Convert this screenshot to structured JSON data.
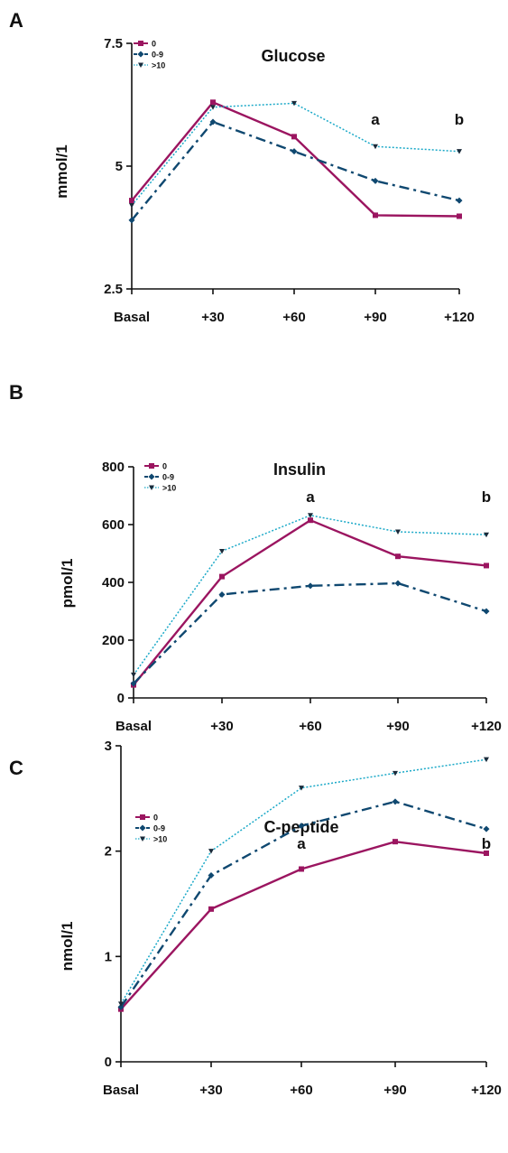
{
  "colors": {
    "0": "#9b1560",
    "0-9": "#0f4870",
    ">10": "#1ba9c8",
    "axis": "#111111"
  },
  "chart_data": [
    {
      "type": "line",
      "panel": "A",
      "title": "Glucose",
      "xlabel": "",
      "ylabel": "mmol/1",
      "categories": [
        "Basal",
        "+30",
        "+60",
        "+90",
        "+120"
      ],
      "yticks": [
        "2.5",
        "5",
        "7.5"
      ],
      "ylim": [
        2.5,
        7.5
      ],
      "legend_position": "top-left",
      "series": [
        {
          "name": "0",
          "values": [
            4.3,
            6.3,
            5.6,
            4.0,
            3.98
          ]
        },
        {
          "name": "0-9",
          "values": [
            3.9,
            5.9,
            5.3,
            4.7,
            4.3
          ]
        },
        {
          "name": ">10",
          "values": [
            4.2,
            6.2,
            6.28,
            5.4,
            5.3
          ]
        }
      ],
      "annotations": [
        {
          "text": "a",
          "x": "+90"
        },
        {
          "text": "b",
          "x": "+120"
        }
      ]
    },
    {
      "type": "line",
      "panel": "B",
      "title": "Insulin",
      "xlabel": "",
      "ylabel": "pmol/1",
      "categories": [
        "Basal",
        "+30",
        "+60",
        "+90",
        "+120"
      ],
      "yticks": [
        "0",
        "200",
        "400",
        "600",
        "800"
      ],
      "ylim": [
        0,
        800
      ],
      "legend_position": "top-left",
      "series": [
        {
          "name": "0",
          "values": [
            45,
            420,
            615,
            490,
            458
          ]
        },
        {
          "name": "0-9",
          "values": [
            50,
            358,
            388,
            397,
            300
          ]
        },
        {
          "name": ">10",
          "values": [
            80,
            508,
            632,
            575,
            565
          ]
        }
      ],
      "annotations": [
        {
          "text": "a",
          "x": "+60"
        },
        {
          "text": "b",
          "x": "+120"
        }
      ]
    },
    {
      "type": "line",
      "panel": "C",
      "title": "C-peptide",
      "xlabel": "",
      "ylabel": "nmol/1",
      "categories": [
        "Basal",
        "+30",
        "+60",
        "+90",
        "+120"
      ],
      "yticks": [
        "0",
        "1",
        "2",
        "3"
      ],
      "ylim": [
        0,
        3
      ],
      "legend_position": "top-left",
      "series": [
        {
          "name": "0",
          "values": [
            0.5,
            1.45,
            1.83,
            2.09,
            1.98
          ]
        },
        {
          "name": "0-9",
          "values": [
            0.52,
            1.77,
            2.24,
            2.47,
            2.21
          ]
        },
        {
          "name": ">10",
          "values": [
            0.55,
            2.0,
            2.6,
            2.74,
            2.87
          ]
        }
      ],
      "annotations": [
        {
          "text": "a",
          "x": "+60"
        },
        {
          "text": "b",
          "x": "+120"
        }
      ]
    }
  ]
}
